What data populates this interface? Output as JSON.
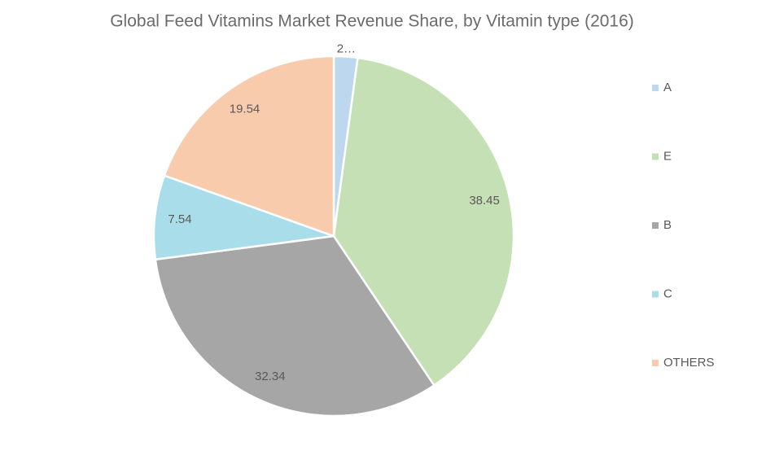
{
  "chart_data": {
    "type": "pie",
    "title": "Global Feed Vitamins Market Revenue Share, by Vitamin type (2016)",
    "categories": [
      "A",
      "E",
      "B",
      "C",
      "OTHERS"
    ],
    "values": [
      2.13,
      38.45,
      32.34,
      7.54,
      19.54
    ],
    "value_labels": [
      "2…",
      "38.45",
      "32.34",
      "7.54",
      "19.54"
    ],
    "colors": [
      "#bdd7ee",
      "#c5e0b4",
      "#a6a6a6",
      "#a9dde9",
      "#f8cbad"
    ],
    "legend": "right"
  }
}
